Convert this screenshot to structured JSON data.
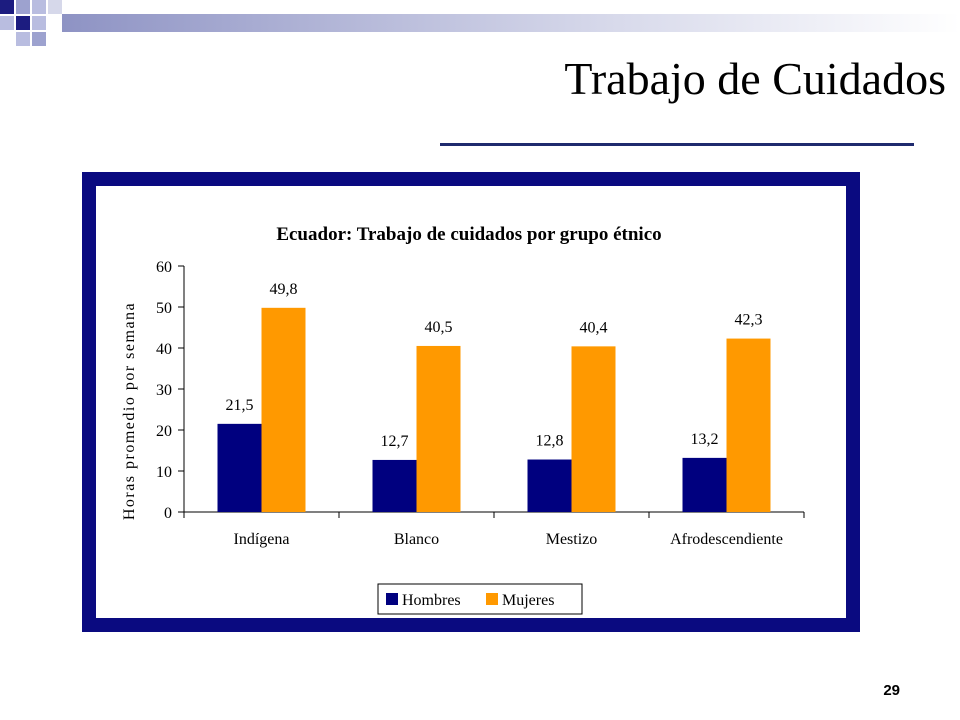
{
  "slide": {
    "title": "Trabajo de Cuidados",
    "page_number": "29"
  },
  "colors": {
    "frame": "#0a0a80",
    "hombres": "#00007f",
    "mujeres": "#ff9900",
    "rule": "#1f2a6e"
  },
  "chart_data": {
    "type": "bar",
    "title": "Ecuador: Trabajo de cuidados por grupo étnico",
    "xlabel": "",
    "ylabel": "Horas promedio por semana",
    "ylim": [
      0,
      60
    ],
    "yticks": [
      0,
      10,
      20,
      30,
      40,
      50,
      60
    ],
    "categories": [
      "Indígena",
      "Blanco",
      "Mestizo",
      "Afrodescendiente"
    ],
    "series": [
      {
        "name": "Hombres",
        "values": [
          21.5,
          12.7,
          12.8,
          13.2
        ],
        "labels": [
          "21,5",
          "12,7",
          "12,8",
          "13,2"
        ]
      },
      {
        "name": "Mujeres",
        "values": [
          49.8,
          40.5,
          40.4,
          42.3
        ],
        "labels": [
          "49,8",
          "40,5",
          "40,4",
          "42,3"
        ]
      }
    ],
    "grid": false,
    "legend_position": "bottom"
  }
}
